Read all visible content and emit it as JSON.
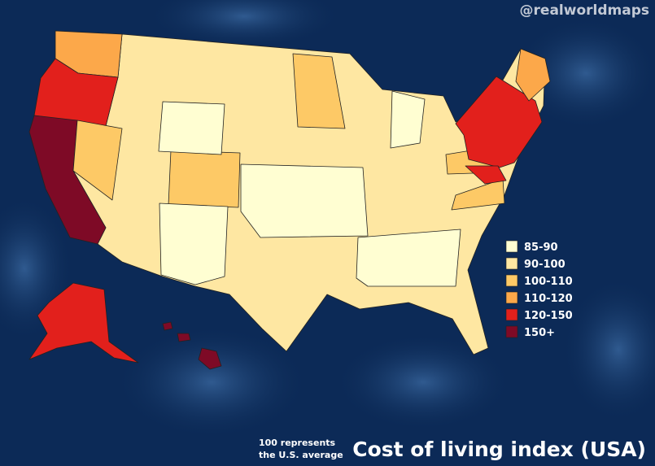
{
  "watermark": "@realworldmaps",
  "legend": {
    "items": [
      {
        "label": "85-90",
        "color": "#fffed2"
      },
      {
        "label": "90-100",
        "color": "#fee7a2"
      },
      {
        "label": "100-110",
        "color": "#fdc966"
      },
      {
        "label": "110-120",
        "color": "#fca84a"
      },
      {
        "label": "120-150",
        "color": "#e2201c"
      },
      {
        "label": "150+",
        "color": "#7e0a26"
      }
    ]
  },
  "note": [
    "100 represents",
    "the U.S. average"
  ],
  "title": "Cost of living index (USA)"
}
